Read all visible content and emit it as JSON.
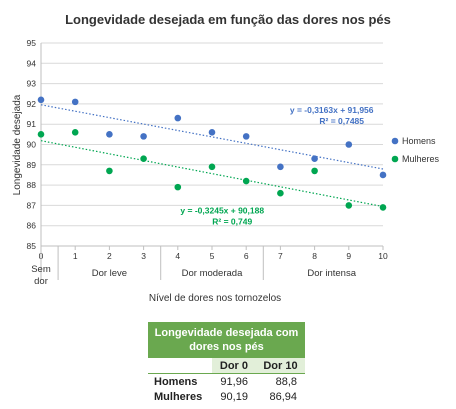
{
  "chart_data": {
    "type": "scatter",
    "title": "Longevidade desejada em função das dores nos pés",
    "xlabel": "Nível de dores nos tornozelos",
    "ylabel": "Longevidade desejada",
    "xlim": [
      0,
      10
    ],
    "ylim": [
      85,
      95
    ],
    "x_ticks": [
      "0",
      "1",
      "2",
      "3",
      "4",
      "5",
      "6",
      "7",
      "8",
      "9",
      "10"
    ],
    "y_ticks": [
      "85",
      "86",
      "87",
      "88",
      "89",
      "90",
      "91",
      "92",
      "93",
      "94",
      "95"
    ],
    "grid": true,
    "legend_position": "right",
    "categories": [
      {
        "label": "Sem\ndor",
        "lines": [
          "Sem",
          "dor"
        ],
        "from": 0,
        "to": 0
      },
      {
        "label": "Dor leve",
        "lines": [
          "Dor leve"
        ],
        "from": 1,
        "to": 3
      },
      {
        "label": "Dor moderada",
        "lines": [
          "Dor moderada"
        ],
        "from": 4,
        "to": 6
      },
      {
        "label": "Dor intensa",
        "lines": [
          "Dor intensa"
        ],
        "from": 7,
        "to": 10
      }
    ],
    "series": [
      {
        "name": "Homens",
        "color": "#4472c4",
        "x": [
          0,
          1,
          2,
          3,
          4,
          5,
          6,
          7,
          8,
          9,
          10
        ],
        "y": [
          92.2,
          92.1,
          90.5,
          90.4,
          91.3,
          90.6,
          90.4,
          88.9,
          89.3,
          90.0,
          88.5
        ],
        "trendline": {
          "slope": -0.3163,
          "intercept": 91.956,
          "equation": "y = -0,3163x + 91,956",
          "r2": "R² = 0,7485"
        }
      },
      {
        "name": "Mulheres",
        "color": "#00a651",
        "x": [
          0,
          1,
          2,
          3,
          4,
          5,
          6,
          7,
          8,
          9,
          10
        ],
        "y": [
          90.5,
          90.6,
          88.7,
          89.3,
          87.9,
          88.9,
          88.2,
          87.6,
          88.7,
          87.0,
          86.9
        ],
        "trendline": {
          "slope": -0.3245,
          "intercept": 90.188,
          "equation": "y = -0,3245x + 90,188",
          "r2": "R² = 0,749"
        }
      }
    ]
  },
  "table": {
    "title": "Longevidade desejada com dores nos pés",
    "columns": [
      "Dor 0",
      "Dor 10"
    ],
    "rows": [
      {
        "label": "Homens",
        "values": [
          "91,96",
          "88,8"
        ]
      },
      {
        "label": "Mulheres",
        "values": [
          "90,19",
          "86,94"
        ]
      }
    ]
  }
}
